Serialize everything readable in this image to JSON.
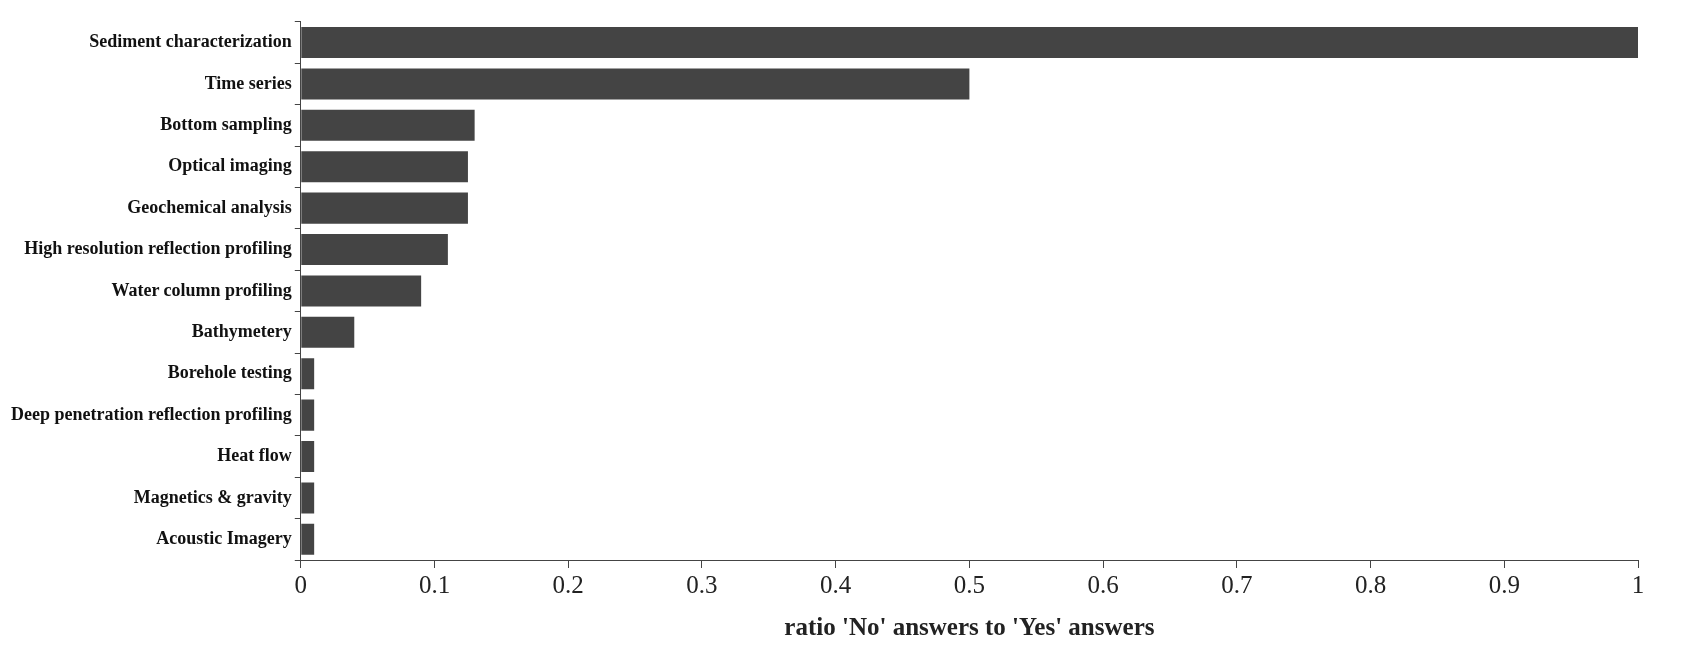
{
  "chart_data": {
    "type": "bar",
    "orientation": "horizontal",
    "xlabel": "ratio 'No' answers to 'Yes' answers",
    "categories": [
      "Sediment characterization",
      "Time series",
      "Bottom sampling",
      "Optical imaging",
      "Geochemical analysis",
      "High resolution reflection profiling",
      "Water column profiling",
      "Bathymetery",
      "Borehole testing",
      "Deep penetration reflection profiling",
      "Heat flow",
      "Magnetics & gravity",
      "Acoustic Imagery"
    ],
    "values": [
      1.0,
      0.5,
      0.13,
      0.125,
      0.125,
      0.11,
      0.09,
      0.04,
      0.01,
      0.01,
      0.01,
      0.01,
      0.01
    ],
    "color": "#444444",
    "xlim": [
      0,
      1
    ],
    "xticks": [
      0,
      0.1,
      0.2,
      0.3,
      0.4,
      0.5,
      0.6,
      0.7,
      0.8,
      0.9,
      1
    ],
    "grid": false,
    "legend": false
  }
}
